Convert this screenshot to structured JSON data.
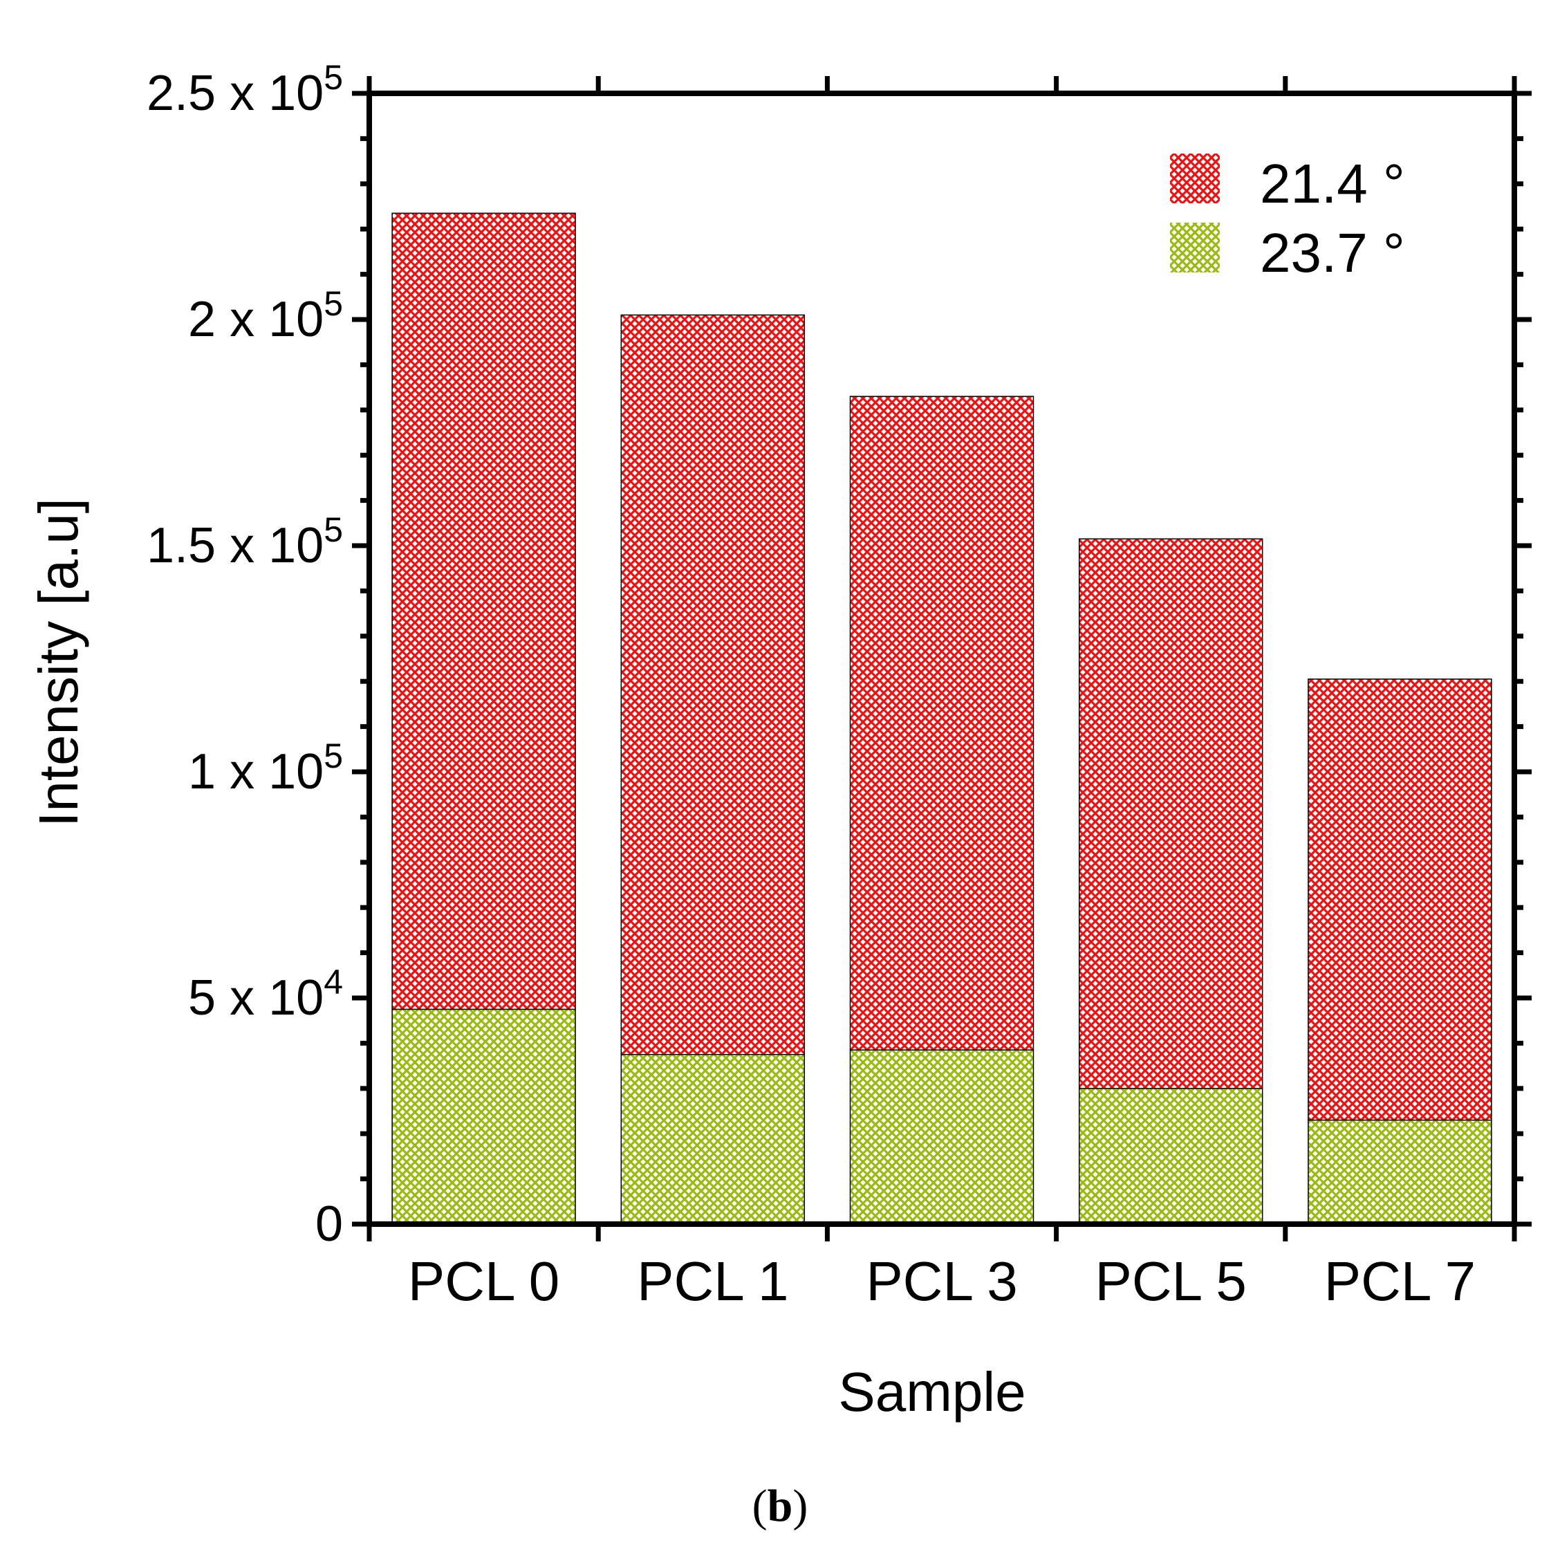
{
  "chart_data": {
    "type": "bar",
    "stacked": true,
    "title": "",
    "xlabel": "Sample",
    "ylabel": "Intensity [a.u]",
    "ylim": [
      0,
      250000
    ],
    "categories": [
      "PCL 0",
      "PCL 1",
      "PCL 3",
      "PCL 5",
      "PCL 7"
    ],
    "series": [
      {
        "name": "23.7 °",
        "color": "#99bb11",
        "values": [
          47500,
          37500,
          38500,
          30000,
          23000
        ]
      },
      {
        "name": "21.4 °",
        "color": "#ee1111",
        "values": [
          176000,
          163500,
          144500,
          121500,
          97500
        ]
      }
    ],
    "totals": [
      223500,
      201000,
      183000,
      151500,
      120500
    ],
    "y_ticks": [
      {
        "value": 0,
        "mantissa": "0",
        "exp": ""
      },
      {
        "value": 50000,
        "mantissa": "5 x 10",
        "exp": "4"
      },
      {
        "value": 100000,
        "mantissa": "1 x 10",
        "exp": "5"
      },
      {
        "value": 150000,
        "mantissa": "1.5 x 10",
        "exp": "5"
      },
      {
        "value": 200000,
        "mantissa": "2 x 10",
        "exp": "5"
      },
      {
        "value": 250000,
        "mantissa": "2.5 x 10",
        "exp": "5"
      }
    ],
    "legend": {
      "position": "top-right",
      "entries": [
        "21.4 °",
        "23.7 °"
      ],
      "colors": [
        "#ee1111",
        "#99bb11"
      ]
    },
    "grid": false
  },
  "caption": "b"
}
